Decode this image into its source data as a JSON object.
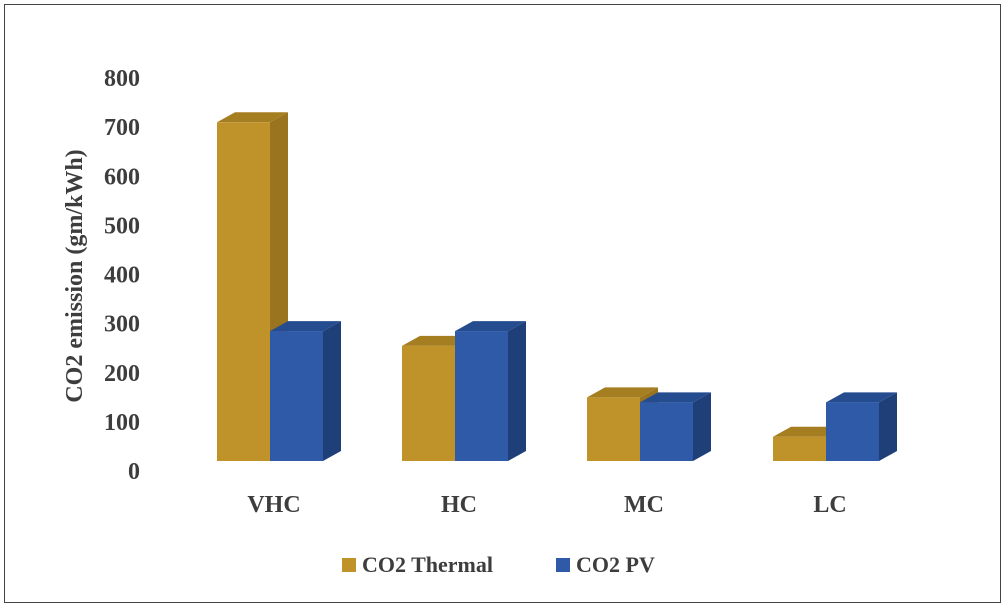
{
  "chart_data": {
    "type": "bar",
    "title": "",
    "xlabel": "",
    "ylabel": "CO2 emission (gm/kWh)",
    "ylim": [
      0,
      800
    ],
    "yticks": [
      0,
      100,
      200,
      300,
      400,
      500,
      600,
      700,
      800
    ],
    "categories": [
      "VHC",
      "HC",
      "MC",
      "LC"
    ],
    "series": [
      {
        "name": "CO2 Thermal",
        "values": [
          720,
          265,
          160,
          80
        ],
        "color": "#C0922A",
        "side": "#9A741E",
        "top": "#A67E22"
      },
      {
        "name": "CO2 PV",
        "values": [
          295,
          295,
          150,
          150
        ],
        "color": "#2E5AA8",
        "side": "#1F3F78",
        "top": "#254C8F"
      }
    ],
    "grid": false,
    "legend_position": "bottom",
    "style": "3d-column"
  }
}
